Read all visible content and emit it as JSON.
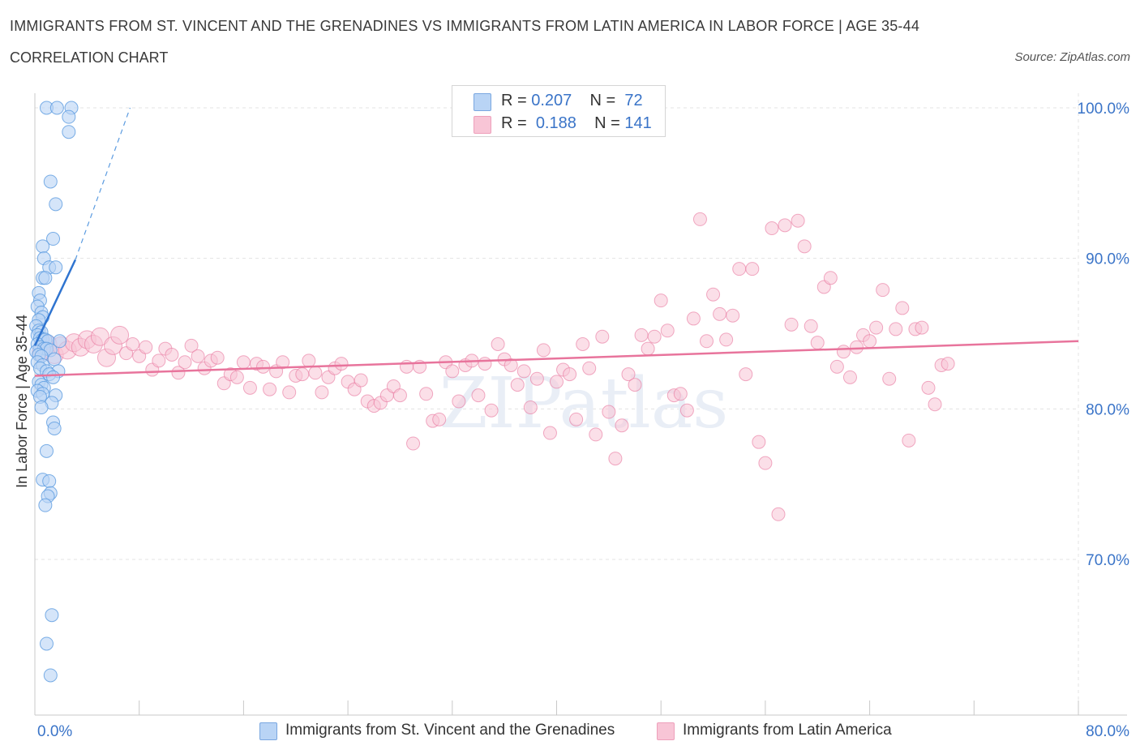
{
  "title": "IMMIGRANTS FROM ST. VINCENT AND THE GRENADINES VS IMMIGRANTS FROM LATIN AMERICA IN LABOR FORCE | AGE 35-44",
  "subtitle": "CORRELATION CHART",
  "source": "Source: ZipAtlas.com",
  "watermark": "ZIPatlas",
  "legend": {
    "r_label": "R =",
    "n_label": "N =",
    "series1": {
      "r": "0.207",
      "n": "72"
    },
    "series2": {
      "r": "0.188",
      "n": "141"
    }
  },
  "colors": {
    "blue": "#5b9be0",
    "blue_fill": "#b9d4f5",
    "pink": "#e8749c",
    "pink_fill": "#f8c5d6",
    "axis_label": "#3a74c8",
    "grid": "#e3e3e3"
  },
  "chart_data": {
    "type": "scatter",
    "title": "IMMIGRANTS FROM ST. VINCENT AND THE GRENADINES VS IMMIGRANTS FROM LATIN AMERICA IN LABOR FORCE | AGE 35-44",
    "xlabel": "",
    "ylabel": "In Labor Force | Age 35-44",
    "xlim": [
      0,
      80
    ],
    "ylim": [
      60,
      100
    ],
    "x_tick_labels": [
      "0.0%",
      "80.0%"
    ],
    "y_tick_labels": [
      "100.0%",
      "90.0%",
      "80.0%",
      "70.0%"
    ],
    "y_ticks": [
      100,
      90,
      80,
      70
    ],
    "grid": true,
    "legend_position": "top-center",
    "series": [
      {
        "name": "Immigrants from St. Vincent and the Grenadines",
        "color": "#5b9be0",
        "r": 0.207,
        "n": 72,
        "trend": {
          "x": [
            0.0,
            3.1
          ],
          "y": [
            84.2,
            89.9
          ]
        },
        "trend_dashed": {
          "x": [
            3.1,
            7.3
          ],
          "y": [
            89.9,
            100.0
          ]
        },
        "points": [
          [
            0.9,
            100.0
          ],
          [
            1.7,
            100.0
          ],
          [
            2.8,
            100.0
          ],
          [
            2.6,
            99.4
          ],
          [
            2.6,
            98.4
          ],
          [
            1.2,
            95.1
          ],
          [
            1.6,
            93.6
          ],
          [
            1.4,
            91.3
          ],
          [
            0.6,
            90.8
          ],
          [
            0.7,
            90.0
          ],
          [
            1.1,
            89.4
          ],
          [
            1.6,
            89.4
          ],
          [
            0.6,
            88.7
          ],
          [
            0.8,
            88.7
          ],
          [
            0.3,
            87.7
          ],
          [
            0.4,
            87.2
          ],
          [
            0.2,
            86.8
          ],
          [
            0.5,
            86.4
          ],
          [
            0.6,
            86.1
          ],
          [
            0.3,
            85.9
          ],
          [
            0.1,
            85.5
          ],
          [
            0.3,
            85.2
          ],
          [
            0.5,
            85.1
          ],
          [
            0.2,
            84.9
          ],
          [
            0.4,
            84.7
          ],
          [
            0.6,
            84.6
          ],
          [
            0.8,
            84.6
          ],
          [
            1.0,
            84.5
          ],
          [
            1.9,
            84.5
          ],
          [
            0.2,
            84.3
          ],
          [
            0.4,
            84.1
          ],
          [
            0.7,
            84.0
          ],
          [
            0.9,
            84.0
          ],
          [
            1.2,
            83.9
          ],
          [
            0.1,
            83.8
          ],
          [
            0.3,
            83.6
          ],
          [
            0.5,
            83.5
          ],
          [
            1.5,
            83.3
          ],
          [
            0.2,
            83.1
          ],
          [
            0.6,
            82.9
          ],
          [
            0.4,
            82.7
          ],
          [
            0.9,
            82.5
          ],
          [
            1.8,
            82.5
          ],
          [
            1.1,
            82.3
          ],
          [
            1.4,
            82.1
          ],
          [
            0.3,
            81.8
          ],
          [
            0.5,
            81.6
          ],
          [
            0.7,
            81.4
          ],
          [
            0.2,
            81.2
          ],
          [
            0.6,
            81.0
          ],
          [
            1.6,
            80.9
          ],
          [
            0.4,
            80.8
          ],
          [
            1.3,
            80.4
          ],
          [
            0.5,
            80.1
          ],
          [
            1.4,
            79.1
          ],
          [
            1.5,
            78.7
          ],
          [
            0.9,
            77.2
          ],
          [
            0.6,
            75.3
          ],
          [
            1.1,
            75.2
          ],
          [
            1.2,
            74.4
          ],
          [
            1.0,
            74.2
          ],
          [
            0.8,
            73.6
          ],
          [
            1.3,
            66.3
          ],
          [
            0.9,
            64.4
          ],
          [
            1.2,
            62.3
          ]
        ]
      },
      {
        "name": "Immigrants from Latin America",
        "color": "#e8749c",
        "r": 0.188,
        "n": 141,
        "trend": {
          "x": [
            0.0,
            80.0
          ],
          "y": [
            82.2,
            84.5
          ]
        },
        "points": [
          [
            0.5,
            83.8
          ],
          [
            1.0,
            84.3
          ],
          [
            1.5,
            83.6
          ],
          [
            2.0,
            84.2
          ],
          [
            2.5,
            83.9
          ],
          [
            3.0,
            84.4
          ],
          [
            3.5,
            84.1
          ],
          [
            4.0,
            84.6
          ],
          [
            4.5,
            84.3
          ],
          [
            5.0,
            84.8
          ],
          [
            5.5,
            83.4
          ],
          [
            6.0,
            84.2
          ],
          [
            6.5,
            84.9
          ],
          [
            7.0,
            83.7
          ],
          [
            7.5,
            84.3
          ],
          [
            8.0,
            83.5
          ],
          [
            8.5,
            84.1
          ],
          [
            9.0,
            82.6
          ],
          [
            9.5,
            83.2
          ],
          [
            10.0,
            84.0
          ],
          [
            10.5,
            83.6
          ],
          [
            11.0,
            82.4
          ],
          [
            11.5,
            83.1
          ],
          [
            12.0,
            84.2
          ],
          [
            12.5,
            83.5
          ],
          [
            13.0,
            82.7
          ],
          [
            13.5,
            83.2
          ],
          [
            14.0,
            83.4
          ],
          [
            14.5,
            81.7
          ],
          [
            15.0,
            82.3
          ],
          [
            15.5,
            82.1
          ],
          [
            16.0,
            83.1
          ],
          [
            16.5,
            81.4
          ],
          [
            17.0,
            83.0
          ],
          [
            17.5,
            82.8
          ],
          [
            18.0,
            81.3
          ],
          [
            18.5,
            82.5
          ],
          [
            19.0,
            83.1
          ],
          [
            19.5,
            81.1
          ],
          [
            20.0,
            82.2
          ],
          [
            20.5,
            82.3
          ],
          [
            21.0,
            83.2
          ],
          [
            21.5,
            82.4
          ],
          [
            22.0,
            81.1
          ],
          [
            22.5,
            82.1
          ],
          [
            23.0,
            82.7
          ],
          [
            23.5,
            83.0
          ],
          [
            24.0,
            81.8
          ],
          [
            24.5,
            81.3
          ],
          [
            25.0,
            81.9
          ],
          [
            25.5,
            80.5
          ],
          [
            26.0,
            80.2
          ],
          [
            26.5,
            80.4
          ],
          [
            27.0,
            80.9
          ],
          [
            27.5,
            81.5
          ],
          [
            28.0,
            80.9
          ],
          [
            28.5,
            82.8
          ],
          [
            29.0,
            77.7
          ],
          [
            29.5,
            82.8
          ],
          [
            30.0,
            81.0
          ],
          [
            30.5,
            79.2
          ],
          [
            31.0,
            79.3
          ],
          [
            31.5,
            83.1
          ],
          [
            32.0,
            82.5
          ],
          [
            32.5,
            80.5
          ],
          [
            33.0,
            82.9
          ],
          [
            33.5,
            83.2
          ],
          [
            34.0,
            80.9
          ],
          [
            34.5,
            83.0
          ],
          [
            35.0,
            79.9
          ],
          [
            35.5,
            84.3
          ],
          [
            36.0,
            83.3
          ],
          [
            36.5,
            82.9
          ],
          [
            37.0,
            81.6
          ],
          [
            37.5,
            82.5
          ],
          [
            38.0,
            80.1
          ],
          [
            38.5,
            82.0
          ],
          [
            39.0,
            83.9
          ],
          [
            39.5,
            78.4
          ],
          [
            40.0,
            81.8
          ],
          [
            40.5,
            82.6
          ],
          [
            41.0,
            82.3
          ],
          [
            41.5,
            79.3
          ],
          [
            42.0,
            84.3
          ],
          [
            42.5,
            82.7
          ],
          [
            43.0,
            78.3
          ],
          [
            43.5,
            84.8
          ],
          [
            44.0,
            79.8
          ],
          [
            44.5,
            76.7
          ],
          [
            45.0,
            78.9
          ],
          [
            45.5,
            82.3
          ],
          [
            46.0,
            81.6
          ],
          [
            46.5,
            84.9
          ],
          [
            47.0,
            84.0
          ],
          [
            47.5,
            84.8
          ],
          [
            48.0,
            87.2
          ],
          [
            48.5,
            85.2
          ],
          [
            49.0,
            80.9
          ],
          [
            49.5,
            81.0
          ],
          [
            50.0,
            79.9
          ],
          [
            50.5,
            86.0
          ],
          [
            51.0,
            92.6
          ],
          [
            51.5,
            84.5
          ],
          [
            52.0,
            87.6
          ],
          [
            52.5,
            86.3
          ],
          [
            53.0,
            84.6
          ],
          [
            53.5,
            86.2
          ],
          [
            54.0,
            89.3
          ],
          [
            54.5,
            82.3
          ],
          [
            55.0,
            89.3
          ],
          [
            55.5,
            77.8
          ],
          [
            56.0,
            76.4
          ],
          [
            56.5,
            92.0
          ],
          [
            57.0,
            73.0
          ],
          [
            57.5,
            92.2
          ],
          [
            58.0,
            85.6
          ],
          [
            58.5,
            92.5
          ],
          [
            59.0,
            90.8
          ],
          [
            59.5,
            85.5
          ],
          [
            60.0,
            84.4
          ],
          [
            60.5,
            88.1
          ],
          [
            61.0,
            88.7
          ],
          [
            61.5,
            82.8
          ],
          [
            62.0,
            83.8
          ],
          [
            62.5,
            82.1
          ],
          [
            63.0,
            84.1
          ],
          [
            63.5,
            84.9
          ],
          [
            64.0,
            84.5
          ],
          [
            64.5,
            85.4
          ],
          [
            65.0,
            87.9
          ],
          [
            65.5,
            82.0
          ],
          [
            66.0,
            85.3
          ],
          [
            66.5,
            86.7
          ],
          [
            67.0,
            77.9
          ],
          [
            67.5,
            85.3
          ],
          [
            68.0,
            85.4
          ],
          [
            68.5,
            81.4
          ],
          [
            69.0,
            80.3
          ],
          [
            69.5,
            82.9
          ],
          [
            70.0,
            83.0
          ]
        ]
      }
    ]
  },
  "bottom_legend": {
    "series1_label": "Immigrants from St. Vincent and the Grenadines",
    "series2_label": "Immigrants from Latin America"
  }
}
